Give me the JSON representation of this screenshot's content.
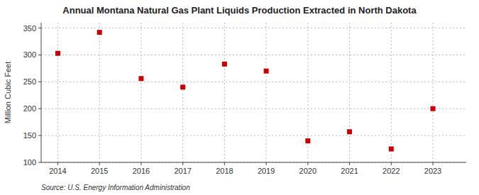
{
  "chart_data": {
    "type": "scatter",
    "title": "Annual Montana Natural Gas Plant Liquids Production Extracted in North Dakota",
    "ylabel": "Million Cubic Feet",
    "source": "Source: U.S. Energy Information Administration",
    "x": [
      2014,
      2015,
      2016,
      2017,
      2018,
      2019,
      2020,
      2021,
      2022,
      2023
    ],
    "values": [
      303,
      342,
      256,
      240,
      283,
      270,
      140,
      157,
      125,
      200
    ],
    "xlim": [
      2013.6,
      2023.8
    ],
    "xticks": [
      2014,
      2015,
      2016,
      2017,
      2018,
      2019,
      2020,
      2021,
      2022,
      2023
    ],
    "ylim": [
      100,
      360
    ],
    "yticks": [
      100,
      150,
      200,
      250,
      300,
      350
    ],
    "color": "#cc0000",
    "marker": "square",
    "grid": true
  }
}
